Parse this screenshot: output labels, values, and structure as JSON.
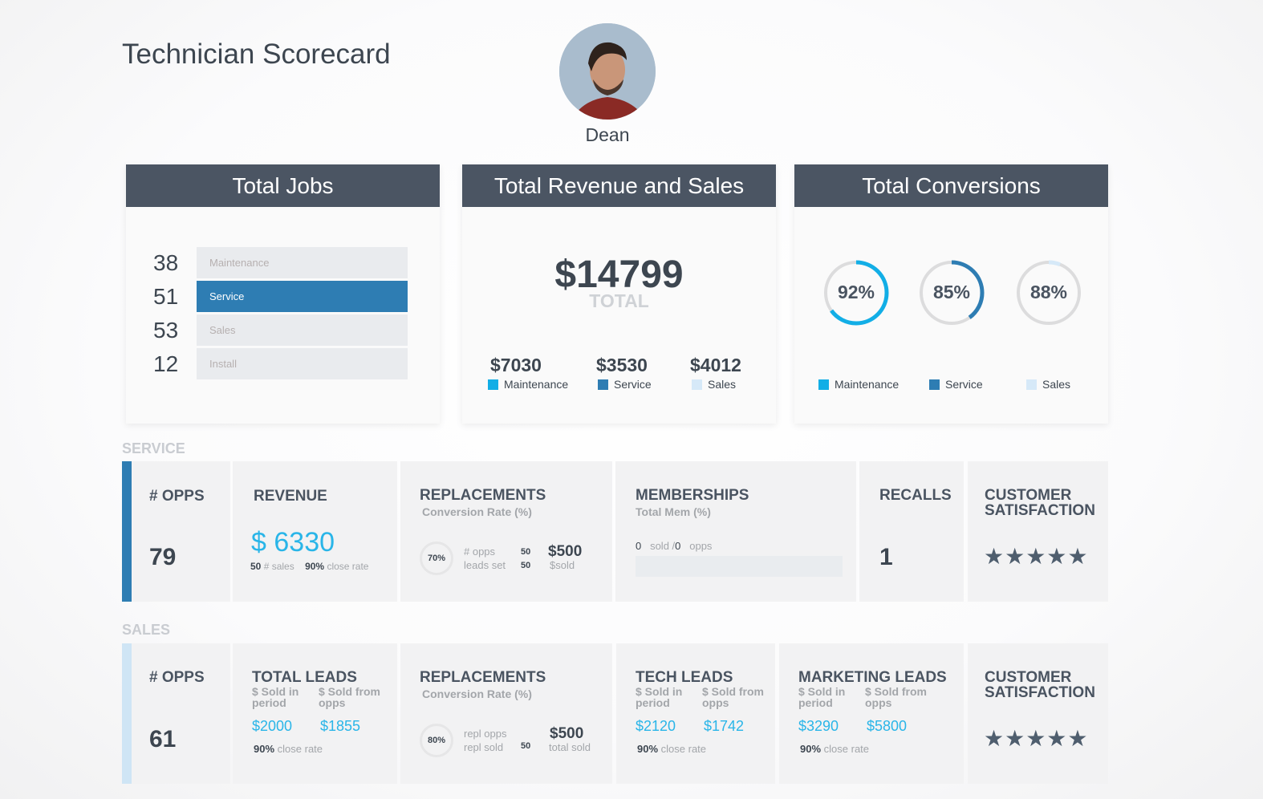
{
  "header": {
    "title": "Technician Scorecard",
    "technician_name": "Dean"
  },
  "colors": {
    "maintenance": "#12aee6",
    "service": "#2e7db3",
    "sales": "#d6e9f8",
    "header_bg": "#4b5563"
  },
  "total_jobs": {
    "title": "Total Jobs",
    "rows": [
      {
        "count": "38",
        "label": "Maintenance",
        "selected": false
      },
      {
        "count": "51",
        "label": "Service",
        "selected": true
      },
      {
        "count": "53",
        "label": "Sales",
        "selected": false
      },
      {
        "count": "12",
        "label": "Install",
        "selected": false
      }
    ]
  },
  "revenue": {
    "title": "Total Revenue and Sales",
    "total": "$14799",
    "total_label": "TOTAL",
    "items": [
      {
        "amount": "$7030",
        "label": "Maintenance"
      },
      {
        "amount": "$3530",
        "label": "Service"
      },
      {
        "amount": "$4012",
        "label": "Sales"
      }
    ]
  },
  "conversions": {
    "title": "Total Conversions",
    "items": [
      {
        "value": "92%",
        "label": "Maintenance",
        "arc_fill": 0.65
      },
      {
        "value": "85%",
        "label": "Service",
        "arc_fill": 0.4
      },
      {
        "value": "88%",
        "label": "Sales",
        "arc_fill": 0.06
      }
    ]
  },
  "service": {
    "label": "SERVICE",
    "opps": {
      "title": "# OPPS",
      "value": "79"
    },
    "revenue": {
      "title": "REVENUE",
      "currency": "$",
      "amount": "6330",
      "sales_count": "50",
      "sales_label": "# sales",
      "close_rate": "90%",
      "close_label": "close rate"
    },
    "replacements": {
      "title": "REPLACEMENTS",
      "subtitle": "Conversion Rate (%)",
      "rate": "70%",
      "opps_label": "# opps",
      "opps": "50",
      "leads_label": "leads set",
      "leads": "50",
      "sold": "$500",
      "sold_label": "$sold"
    },
    "memberships": {
      "title": "MEMBERSHIPS",
      "subtitle": "Total Mem  (%)",
      "sold": "0",
      "sold_label": "sold /",
      "opps": "0",
      "opps_label": "opps",
      "progress": 0
    },
    "recalls": {
      "title": "RECALLS",
      "value": "1"
    },
    "satisfaction": {
      "title_1": "CUSTOMER",
      "title_2": "SATISFACTION",
      "stars": "★★★★★",
      "rating": 5
    }
  },
  "sales": {
    "label": "SALES",
    "opps": {
      "title": "# OPPS",
      "value": "61"
    },
    "total_leads": {
      "title": "TOTAL LEADS",
      "col1": "$ Sold in period",
      "col2": "$ Sold from opps",
      "v1": "$2000",
      "v2": "$1855",
      "close_rate": "90%",
      "close_label": "close rate"
    },
    "replacements": {
      "title": "REPLACEMENTS",
      "subtitle": "Conversion Rate (%)",
      "rate": "80%",
      "repl_opps_label": "repl opps",
      "repl_sold_label": "repl sold",
      "repl_sold": "50",
      "total": "$500",
      "total_label": "total sold"
    },
    "tech_leads": {
      "title": "TECH LEADS",
      "col1": "$ Sold in period",
      "col2": "$ Sold from opps",
      "v1": "$2120",
      "v2": "$1742",
      "close_rate": "90%",
      "close_label": "close rate"
    },
    "marketing_leads": {
      "title": "MARKETING LEADS",
      "col1": "$ Sold in period",
      "col2": "$ Sold from opps",
      "v1": "$3290",
      "v2": "$5800",
      "close_rate": "90%",
      "close_label": "close rate"
    },
    "satisfaction": {
      "title_1": "CUSTOMER",
      "title_2": "SATISFACTION",
      "stars": "★★★★★",
      "rating": 5
    }
  }
}
